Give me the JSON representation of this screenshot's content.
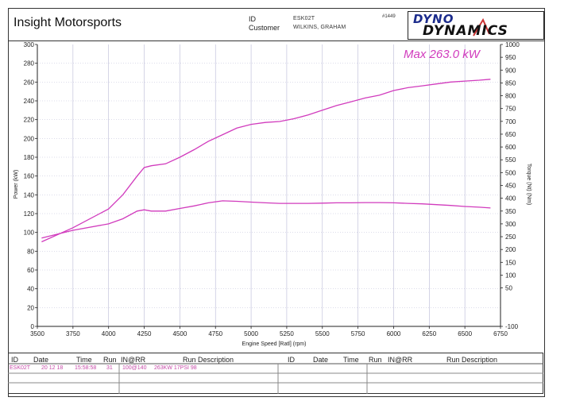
{
  "header": {
    "company": "Insight Motorsports",
    "id_label": "ID",
    "id_value": "ESK02T",
    "customer_label": "Customer",
    "customer_value": "WILKINS, GRAHAM",
    "sheet_number": "#1449",
    "logo_top": "DYNO",
    "logo_bottom": "DYNAMICS"
  },
  "annotation": "Max 263.0 kW",
  "table": {
    "headers_left": [
      "ID",
      "Date",
      "Time",
      "Run",
      "IN@RR",
      "Run Description"
    ],
    "headers_right": [
      "ID",
      "Date",
      "Time",
      "Run",
      "IN@RR",
      "Run Description"
    ],
    "row": [
      "ESK02T",
      "20 12 18",
      "15:58:58",
      "31",
      "100@140",
      "263KW 17PSI 98"
    ]
  },
  "colors": {
    "curve": "#d13bbd",
    "grid": "#b9b9d6",
    "axis": "#222222"
  },
  "chart_data": {
    "type": "line",
    "xlabel": "Engine Speed [Ratl] (rpm)",
    "ylabel": "Power (kW)",
    "y2label": "Torque (Nt) (Nm)",
    "xlim": [
      3500,
      6750
    ],
    "ylim": [
      0,
      300
    ],
    "y2lim": [
      -100,
      1000
    ],
    "x_ticks": [
      3500,
      3750,
      4000,
      4250,
      4500,
      4750,
      5000,
      5250,
      5500,
      5750,
      6000,
      6250,
      6500,
      6750
    ],
    "y_ticks": [
      0,
      20,
      40,
      60,
      80,
      100,
      120,
      140,
      160,
      180,
      200,
      220,
      240,
      260,
      280,
      300
    ],
    "y2_ticks": [
      -100,
      50,
      100,
      150,
      200,
      250,
      300,
      350,
      400,
      450,
      500,
      550,
      600,
      650,
      700,
      750,
      800,
      850,
      900,
      950,
      1000
    ],
    "grid": true,
    "series": [
      {
        "axis": "left",
        "x": [
          3530,
          3750,
          4000,
          4100,
          4200,
          4250,
          4300,
          4400,
          4500,
          4600,
          4700,
          4800,
          4900,
          5000,
          5100,
          5200,
          5300,
          5400,
          5500,
          5600,
          5700,
          5800,
          5900,
          6000,
          6100,
          6200,
          6300,
          6400,
          6500,
          6600,
          6680
        ],
        "y": [
          90,
          105,
          125,
          140,
          160,
          169,
          171,
          173,
          180,
          188,
          197,
          204,
          211,
          215,
          217,
          218,
          221,
          225,
          230,
          235,
          239,
          243,
          246,
          251,
          254,
          256,
          258,
          260,
          261,
          262,
          263
        ]
      },
      {
        "axis": "right",
        "x": [
          3530,
          3750,
          4000,
          4100,
          4200,
          4250,
          4300,
          4400,
          4500,
          4600,
          4700,
          4800,
          4900,
          5000,
          5100,
          5200,
          5300,
          5400,
          5500,
          5600,
          5700,
          5800,
          5900,
          6000,
          6100,
          6200,
          6300,
          6400,
          6500,
          6600,
          6680
        ],
        "y": [
          245,
          275,
          300,
          320,
          350,
          355,
          350,
          350,
          360,
          370,
          382,
          390,
          388,
          385,
          382,
          380,
          380,
          380,
          381,
          382,
          382,
          383,
          383,
          382,
          380,
          378,
          375,
          372,
          368,
          365,
          362
        ]
      }
    ]
  }
}
